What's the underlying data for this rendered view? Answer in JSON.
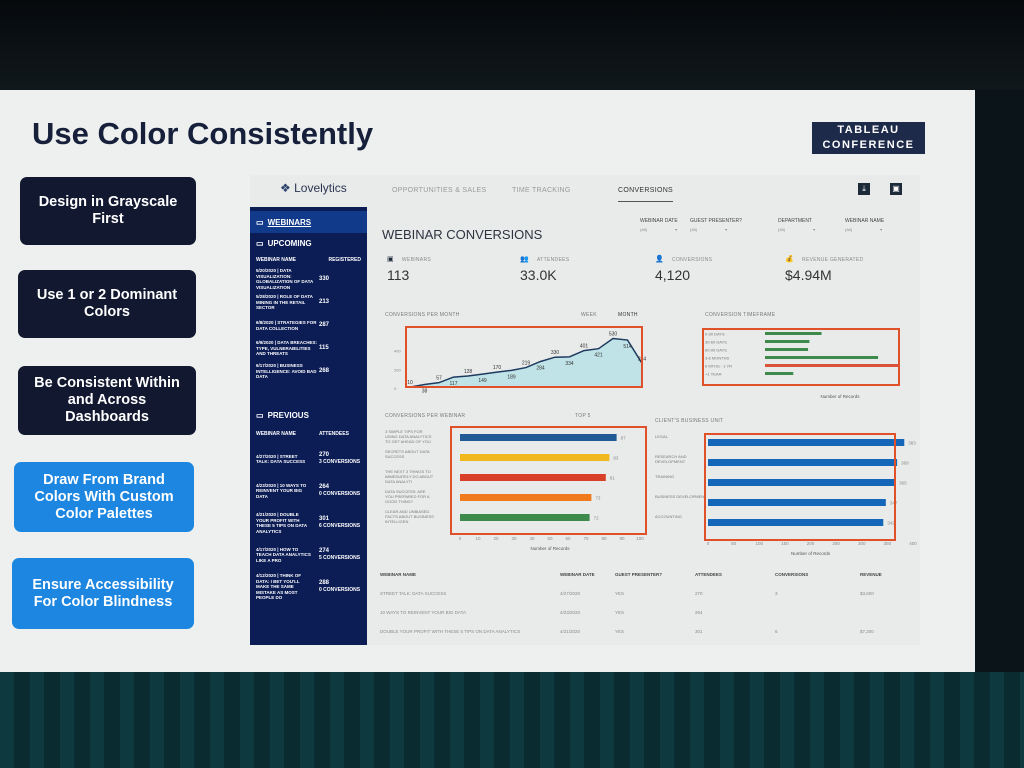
{
  "slide": {
    "title": "Use Color Consistently",
    "logo": [
      "TABLEAU",
      "CONFERENCE"
    ],
    "tips": [
      "Design in Grayscale First",
      "Use 1 or 2 Dominant Colors",
      "Be Consistent Within and Across Dashboards",
      "Draw From Brand Colors With Custom Color Palettes",
      "Ensure Accessibility For Color Blindness"
    ]
  },
  "dashboard": {
    "brand": "Lovelytics",
    "tabs": [
      "OPPORTUNITIES & SALES",
      "TIME TRACKING",
      "CONVERSIONS"
    ],
    "active_tab": "CONVERSIONS",
    "icons": [
      "pdf-icon",
      "image-export-icon"
    ],
    "sidebar": {
      "webinars": "WEBINARS",
      "upcoming": "UPCOMING",
      "upcoming_cols": [
        "WEBINAR NAME",
        "REGISTERED"
      ],
      "upcoming_rows": [
        {
          "name": "5/20/2020 | DATA VISUALIZATION: GLOBALIZATION OF DATA VISUALIZATION",
          "value": "330"
        },
        {
          "name": "5/28/2020 | ROLE OF DATA MINING IN THE RETAIL SECTOR",
          "value": "213"
        },
        {
          "name": "6/8/2020 | STRATEGIES FOR DATA COLLECTION",
          "value": "287"
        },
        {
          "name": "6/9/2020 | DATA BREACHES: TYPE, VULNERABILITIES AND THREATS",
          "value": "115"
        },
        {
          "name": "6/17/2020 | BUSINESS INTELLIGENCE: AVOID BAD DATA",
          "value": "268"
        }
      ],
      "previous": "PREVIOUS",
      "previous_cols": [
        "WEBINAR NAME",
        "ATTENDEES"
      ],
      "previous_rows": [
        {
          "name": "4/27/2020 | STREET TALK: DATA SUCCESS",
          "value": "270",
          "sub": "3 CONVERSIONS"
        },
        {
          "name": "4/23/2020 | 10 WAYS TO REINVENT YOUR BIG DATA",
          "value": "264",
          "sub": "0 CONVERSIONS"
        },
        {
          "name": "4/21/2020 | DOUBLE YOUR PROFIT WITH THESE 5 TIPS ON DATA ANALYTICS",
          "value": "301",
          "sub": "6 CONVERSIONS"
        },
        {
          "name": "4/17/2020 | HOW TO TEACH DATA ANALYTICS LIKE A PRO",
          "value": "274",
          "sub": "5 CONVERSIONS"
        },
        {
          "name": "4/12/2020 | THINK OF DATA: I BET YOU'LL MAKE THE SAME MISTAKE AS MOST PEOPLE DO",
          "value": "288",
          "sub": "0 CONVERSIONS"
        }
      ]
    },
    "title": "WEBINAR CONVERSIONS",
    "filters": [
      {
        "label": "WEBINAR DATE",
        "value": "(All)"
      },
      {
        "label": "GUEST PRESENTER?",
        "value": "(All)"
      },
      {
        "label": "DEPARTMENT",
        "value": "(All)"
      },
      {
        "label": "WEBINAR NAME",
        "value": "(All)"
      }
    ],
    "kpis": [
      {
        "label": "WEBINARS",
        "value": "113",
        "icon": "presentation-icon"
      },
      {
        "label": "ATTENDEES",
        "value": "33.0K",
        "icon": "people-icon"
      },
      {
        "label": "CONVERSIONS",
        "value": "4,120",
        "icon": "user-icon"
      },
      {
        "label": "REVENUE GENERATED",
        "value": "$4.94M",
        "icon": "money-bag-icon"
      }
    ],
    "sections": {
      "per_month": "CONVERSIONS PER MONTH",
      "week": "WEEK",
      "month": "MONTH",
      "timeframe": "CONVERSION TIMEFRAME",
      "per_webinar": "CONVERSIONS PER WEBINAR",
      "top": "TOP 5",
      "business_unit": "CLIENT'S BUSINESS UNIT",
      "records": "Number of Records"
    },
    "table": {
      "cols": [
        "WEBINAR NAME",
        "WEBINAR DATE",
        "GUEST PRESENTER?",
        "ATTENDEES",
        "CONVERSIONS",
        "REVENUE"
      ],
      "rows": [
        [
          "STREET TALK: DATA SUCCESS",
          "4/27/2020",
          "YES",
          "270",
          "3",
          "$3,600"
        ],
        [
          "10 WAYS TO REINVENT YOUR BIG DATA",
          "4/23/2020",
          "YES",
          "264",
          "",
          ""
        ],
        [
          "DOUBLE YOUR PROFIT WITH THESE 5 TIPS ON DATA ANALYTICS",
          "4/21/2020",
          "YES",
          "301",
          "6",
          "$7,200"
        ]
      ]
    },
    "highlight_color": "#e0512a"
  },
  "chart_data": [
    {
      "type": "area",
      "title": "CONVERSIONS PER MONTH",
      "values": [
        10,
        38,
        57,
        117,
        128,
        149,
        170,
        189,
        219,
        284,
        330,
        334,
        401,
        421,
        530,
        514,
        264
      ],
      "ylim": [
        0,
        600
      ],
      "yticks": [
        0,
        200,
        400
      ],
      "color": "#1e3a5f",
      "fill": "#bfe3e6"
    },
    {
      "type": "bar",
      "title": "CONVERSION TIMEFRAME",
      "categories": [
        "0-30 DAYS",
        "30-60 DAYS",
        "60-90 DAYS",
        "3-6 MONTHS",
        "6 MTHS - 1 YR",
        "+1 YEAR"
      ],
      "values": [
        210,
        165,
        160,
        420,
        500,
        105
      ],
      "colors": [
        "#3d8a4a",
        "#3d8a4a",
        "#3d8a4a",
        "#3d8a4a",
        "#d9533a",
        "#3d8a4a"
      ],
      "xlabel": "Number of Records"
    },
    {
      "type": "bar",
      "title": "CONVERSIONS PER WEBINAR",
      "categories": [
        "3 SIMPLE TIPS FOR USING DATA ANALYTICS TO GET AHEAD OF YOU",
        "SECRETS ABOUT DATA SUCCESS",
        "THE NEXT 3 THINGS TO IMMEDIATELY DO ABOUT DATA ANALYTI",
        "DATA SUCCESS: ARE YOU PREPARED FOR A GOOD THING?",
        "CLEAR AND UNBIASED FACTS ABOUT BUSINESS INTELLIGEN"
      ],
      "values": [
        87,
        83,
        81,
        73,
        72
      ],
      "colors": [
        "#1f5a96",
        "#f0b81c",
        "#d9402a",
        "#f07a1c",
        "#3d8a4a"
      ],
      "xlim": [
        0,
        100
      ],
      "xticks": [
        0,
        10,
        20,
        30,
        40,
        50,
        60,
        70,
        80,
        90,
        100
      ],
      "xlabel": "Number of Records"
    },
    {
      "type": "bar",
      "title": "CLIENT'S BUSINESS UNIT",
      "categories": [
        "LEGAL",
        "RESEARCH AND DEVELOPMENT",
        "TRAINING",
        "BUSINESS DEVELOPMENT",
        "ACCOUNTING"
      ],
      "values": [
        383,
        369,
        365,
        347,
        342
      ],
      "colors": [
        "#1466b8"
      ],
      "xlim": [
        0,
        400
      ],
      "xticks": [
        0,
        50,
        100,
        150,
        200,
        250,
        300,
        350,
        400
      ],
      "xlabel": "Number of Records"
    }
  ]
}
